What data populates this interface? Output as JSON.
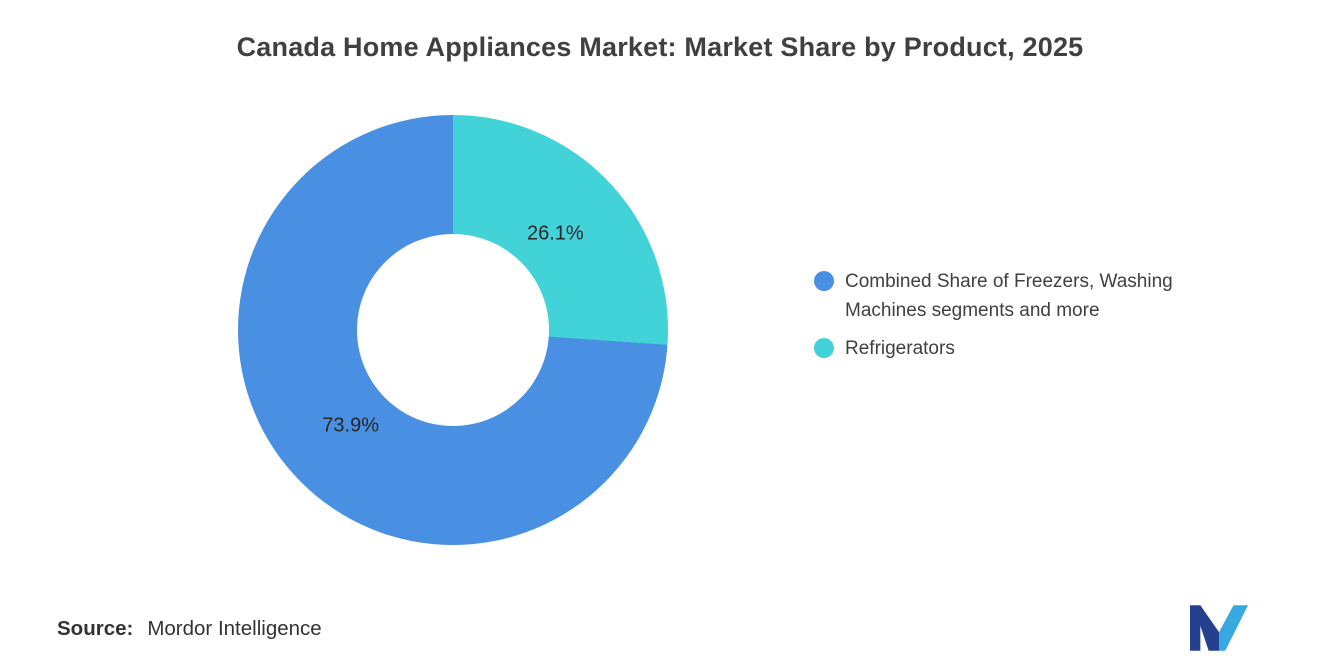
{
  "chart_data": {
    "type": "pie",
    "donut": true,
    "title": "Canada Home Appliances Market: Market Share by Product, 2025",
    "categories": [
      "Combined Share of Freezers, Washing Machines segments and more",
      "Refrigerators"
    ],
    "values": [
      73.9,
      26.1
    ],
    "unit": "%",
    "colors": [
      "#4A90E2",
      "#42D3D8"
    ],
    "data_labels": [
      "73.9%",
      "26.1%"
    ],
    "draw_order": [
      1,
      0
    ],
    "legend_position": "right",
    "start_angle": "12 o'clock, clockwise"
  },
  "legend": {
    "items": [
      {
        "label": "Combined Share of Freezers, Washing Machines segments and more",
        "color": "#4A90E2"
      },
      {
        "label": "Refrigerators",
        "color": "#42D3D8"
      }
    ]
  },
  "source": {
    "label": "Source:",
    "value": "Mordor Intelligence"
  },
  "logo": {
    "icon": "mordor-intelligence-logo",
    "color_dark": "#25418D",
    "color_light": "#38A8E0"
  }
}
